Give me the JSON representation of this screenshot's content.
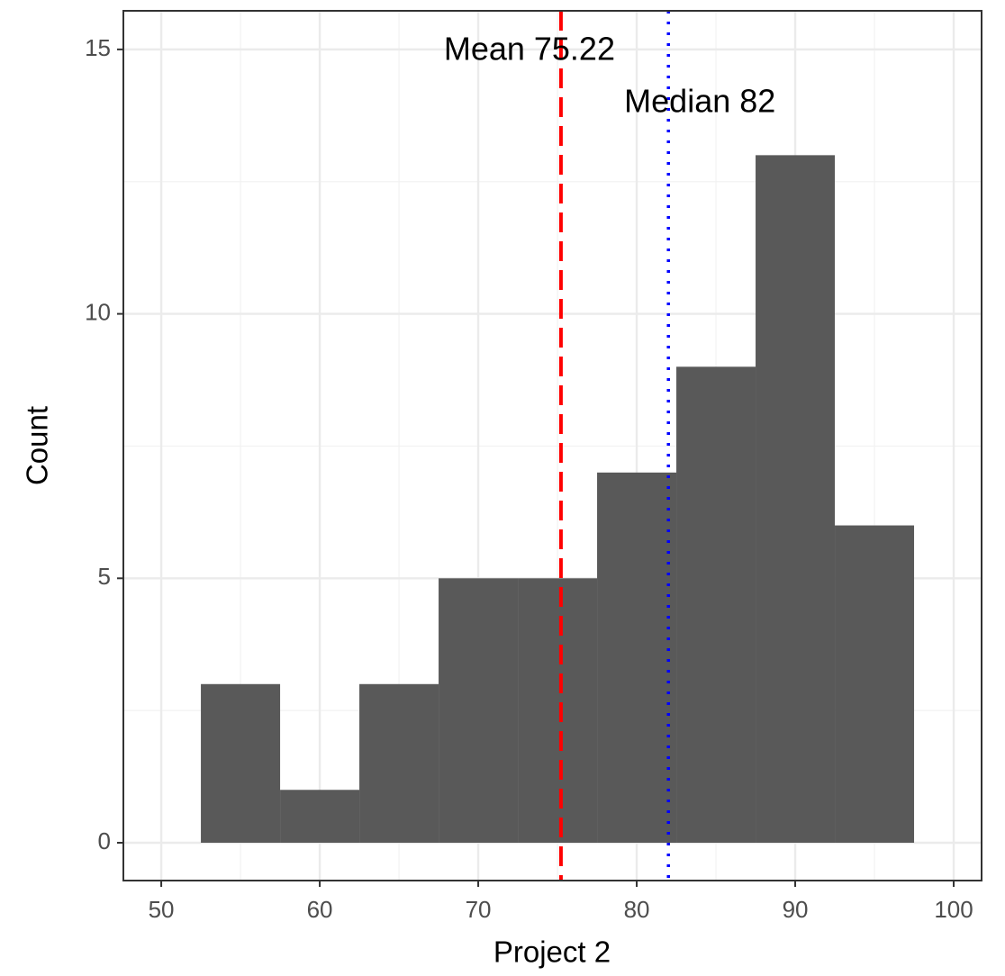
{
  "chart_data": {
    "type": "histogram",
    "x_label": "Project 2",
    "y_label": "Count",
    "bins": [
      52.5,
      57.5,
      62.5,
      67.5,
      72.5,
      77.5,
      82.5,
      87.5,
      92.5,
      97.5
    ],
    "values": [
      3,
      1,
      3,
      5,
      5,
      7,
      9,
      13,
      6
    ],
    "color": "#595959",
    "xlim": [
      47.61,
      101.76
    ],
    "ylim": [
      -0.715,
      15.73
    ],
    "xticks": [
      50,
      60,
      70,
      80,
      90,
      100
    ],
    "yticks": [
      0,
      5,
      10,
      15
    ],
    "xminorticks": [
      55,
      65,
      75,
      85,
      95
    ],
    "yminorticks": [
      2.5,
      7.5,
      12.5
    ],
    "grid": true,
    "reference_lines": [
      {
        "label": "Mean 75.22",
        "value": 75.22,
        "color": "#ff0000",
        "style": "dashed"
      },
      {
        "label": "Median 82",
        "value": 82,
        "color": "#0000ff",
        "style": "dotted"
      }
    ]
  }
}
